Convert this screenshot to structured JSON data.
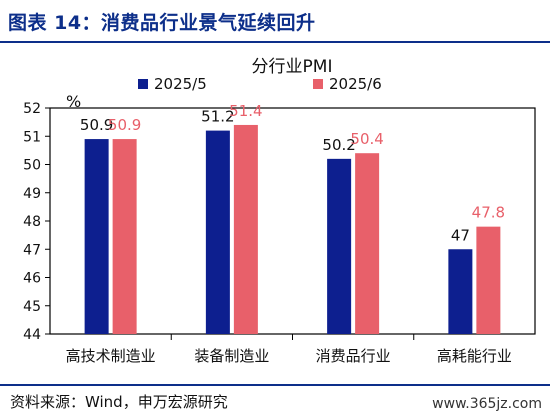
{
  "header": {
    "title": "图表 14：消费品行业景气延续回升"
  },
  "footer": {
    "source": "资料来源：Wind，申万宏源研究",
    "watermark": "www.365jz.com"
  },
  "colors": {
    "title": "#0d2f8a",
    "series_1": "#0d1f8f",
    "series_2": "#e8606a",
    "axis": "#000000"
  },
  "chart_data": {
    "type": "bar",
    "title": "分行业PMI",
    "ylabel": "%",
    "xlabel": "",
    "ylim": [
      44,
      52
    ],
    "yticks": [
      44,
      45,
      46,
      47,
      48,
      49,
      50,
      51,
      52
    ],
    "grid": false,
    "legend_position": "top-right",
    "categories": [
      "高技术制造业",
      "装备制造业",
      "消费品行业",
      "高耗能行业"
    ],
    "series": [
      {
        "name": "2025/5",
        "values": [
          50.9,
          51.2,
          50.2,
          47.0
        ],
        "labels": [
          "50.9",
          "51.2",
          "50.2",
          "47"
        ]
      },
      {
        "name": "2025/6",
        "values": [
          50.9,
          51.4,
          50.4,
          47.8
        ],
        "labels": [
          "50.9",
          "51.4",
          "50.4",
          "47.8"
        ]
      }
    ]
  }
}
